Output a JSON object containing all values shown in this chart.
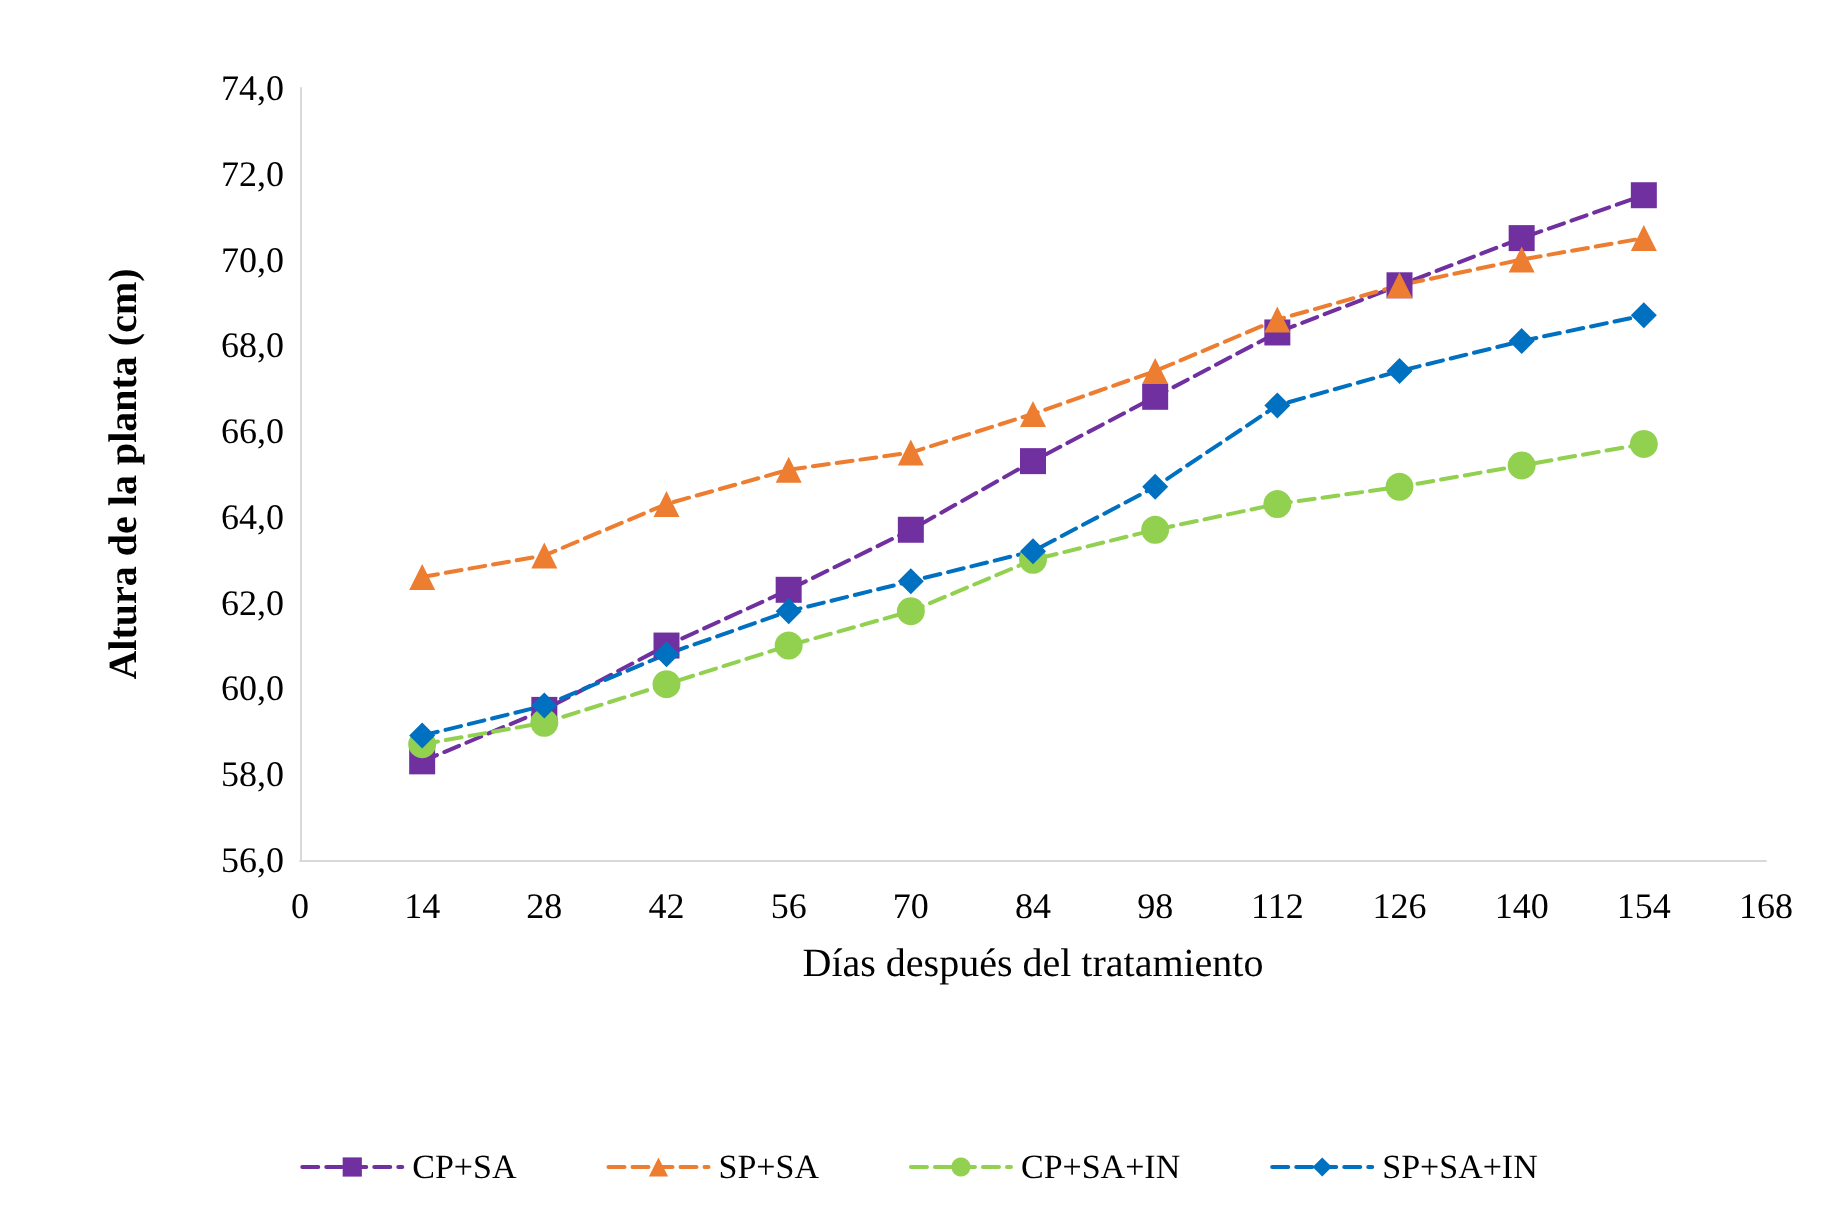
{
  "chart_data": {
    "type": "line",
    "xlabel": "Días después del tratamiento",
    "ylabel": "Altura de la planta (cm)",
    "x": [
      14,
      28,
      42,
      56,
      70,
      84,
      98,
      112,
      126,
      140,
      154
    ],
    "series": [
      {
        "name": "CP+SA",
        "color": "#7030a0",
        "marker": "square",
        "values": [
          58.3,
          59.5,
          61.0,
          62.3,
          63.7,
          65.3,
          66.8,
          68.3,
          69.4,
          70.5,
          71.5
        ]
      },
      {
        "name": "SP+SA",
        "color": "#ed7d31",
        "marker": "triangle",
        "values": [
          62.6,
          63.1,
          64.3,
          65.1,
          65.5,
          66.4,
          67.4,
          68.6,
          69.4,
          70.0,
          70.5
        ]
      },
      {
        "name": "CP+SA+IN",
        "color": "#92d050",
        "marker": "circle",
        "values": [
          58.7,
          59.2,
          60.1,
          61.0,
          61.8,
          63.0,
          63.7,
          64.3,
          64.7,
          65.2,
          65.7
        ]
      },
      {
        "name": "SP+SA+IN",
        "color": "#0070c0",
        "marker": "diamond",
        "values": [
          58.9,
          59.6,
          60.8,
          61.8,
          62.5,
          63.2,
          64.7,
          66.6,
          67.4,
          68.1,
          68.7
        ]
      }
    ],
    "xlim": [
      0,
      168
    ],
    "xticks": [
      0,
      14,
      28,
      42,
      56,
      70,
      84,
      98,
      112,
      126,
      140,
      154,
      168
    ],
    "ylim": [
      56,
      74
    ],
    "yticks": [
      {
        "value": 56,
        "label": "56,0"
      },
      {
        "value": 58,
        "label": "58,0"
      },
      {
        "value": 60,
        "label": "60,0"
      },
      {
        "value": 62,
        "label": "62,0"
      },
      {
        "value": 64,
        "label": "64,0"
      },
      {
        "value": 66,
        "label": "66,0"
      },
      {
        "value": 68,
        "label": "68,0"
      },
      {
        "value": 70,
        "label": "70,0"
      },
      {
        "value": 72,
        "label": "72,0"
      },
      {
        "value": 74,
        "label": "74,0"
      }
    ],
    "grid": false,
    "legend": "bottom",
    "line_style": "dashed"
  }
}
